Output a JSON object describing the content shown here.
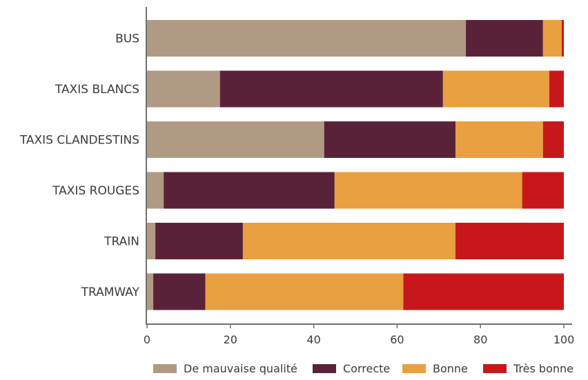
{
  "chart_data": {
    "type": "bar",
    "orientation": "horizontal",
    "stacked": true,
    "categories": [
      "BUS",
      "TAXIS BLANCS",
      "TAXIS CLANDESTINS",
      "TAXIS ROUGES",
      "TRAIN",
      "TRAMWAY"
    ],
    "series": [
      {
        "name": "De mauvaise qualité",
        "color": "#b09a83",
        "values": [
          76.5,
          17.5,
          42.5,
          4,
          2,
          1.5
        ]
      },
      {
        "name": "Correcte",
        "color": "#5a2238",
        "values": [
          18.5,
          53.5,
          31.5,
          41,
          21,
          12.5
        ]
      },
      {
        "name": "Bonne",
        "color": "#e9a040",
        "values": [
          4.5,
          25.5,
          21,
          45,
          51,
          47.5
        ]
      },
      {
        "name": "Très bonne",
        "color": "#c8171b",
        "values": [
          0.5,
          3.5,
          5,
          10,
          26,
          38.5
        ]
      }
    ],
    "xlim": [
      0,
      100
    ],
    "xticks": [
      "0",
      "20",
      "40",
      "60",
      "80",
      "100"
    ],
    "title": "",
    "xlabel": "",
    "ylabel": "",
    "grid": false,
    "legend_position": "bottom",
    "axis_color": "#6f6f6f"
  }
}
